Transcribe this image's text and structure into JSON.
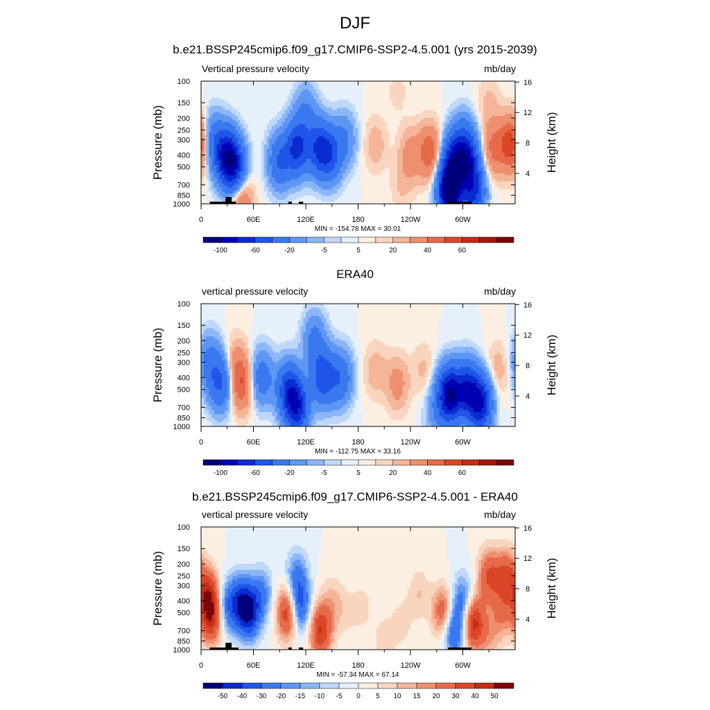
{
  "suptitle": "DJF",
  "colors": {
    "scale_main": [
      "#00007a",
      "#0000b4",
      "#0a2bd0",
      "#1f55e8",
      "#3a78f0",
      "#5e96f4",
      "#8cb6f7",
      "#bfd8fa",
      "#e6f0fb",
      "#fcefe2",
      "#f9d5bf",
      "#f4b598",
      "#ee9070",
      "#e66a4a",
      "#dc4628",
      "#c52c16",
      "#a3170c",
      "#7a0606"
    ],
    "scale_diff": [
      "#00007a",
      "#0a2bd0",
      "#1f55e8",
      "#3a78f0",
      "#5e96f4",
      "#8cb6f7",
      "#bfd8fa",
      "#e6f0fb",
      "#fcefe2",
      "#f9d5bf",
      "#f4b598",
      "#ee9070",
      "#e66a4a",
      "#dc4628",
      "#c52c16",
      "#7a0606"
    ],
    "topography": "#000000"
  },
  "chart_data": [
    {
      "type": "heatmap",
      "title": "b.e21.BSSP245cmip6.f09_g17.CMIP6-SSP2-4.5.001 (yrs 2015-2039)",
      "left_string": "Vertical pressure velocity",
      "right_string": "mb/day",
      "ylabel": "Pressure (mb)",
      "ylabel_right": "Height (km)",
      "x_ticks": [
        "0",
        "60E",
        "120E",
        "180",
        "120W",
        "60W"
      ],
      "x_tick_values": [
        0,
        60,
        120,
        180,
        240,
        300
      ],
      "xlim": [
        0,
        360
      ],
      "y_ticks": [
        "100",
        "150",
        "200",
        "250",
        "300",
        "400",
        "500",
        "700",
        "850",
        "1000"
      ],
      "y_tick_values": [
        100,
        150,
        200,
        250,
        300,
        400,
        500,
        700,
        850,
        1000
      ],
      "ylim": [
        1000,
        100
      ],
      "y_scale": "log",
      "height_ticks": [
        "16",
        "12",
        "8",
        "4"
      ],
      "height_values": [
        16,
        12,
        8,
        4
      ],
      "stats": "MIN = -154.78  MAX =  30.01",
      "colorbar_labels": [
        "-100",
        "-60",
        "-20",
        "-5",
        "5",
        "20",
        "40",
        "60"
      ],
      "colorbar_label_boundaries": [
        1,
        3,
        5,
        7,
        9,
        11,
        13,
        15
      ],
      "colorbar_bins": 18,
      "colorbar_scale": "main",
      "features": [
        {
          "lon": 28,
          "p": 400,
          "value": -70
        },
        {
          "lon": 38,
          "p": 500,
          "value": -70
        },
        {
          "lon": 12,
          "p": 300,
          "value": -30
        },
        {
          "lon": 90,
          "p": 450,
          "value": -40
        },
        {
          "lon": 110,
          "p": 350,
          "value": -65
        },
        {
          "lon": 135,
          "p": 350,
          "value": -55
        },
        {
          "lon": 148,
          "p": 400,
          "value": -45
        },
        {
          "lon": 120,
          "p": 180,
          "value": -20
        },
        {
          "lon": 165,
          "p": 300,
          "value": -20
        },
        {
          "lon": 1,
          "p": 300,
          "value": 12
        },
        {
          "lon": 45,
          "p": 900,
          "value": 25
        },
        {
          "lon": 200,
          "p": 330,
          "value": 8
        },
        {
          "lon": 240,
          "p": 400,
          "value": 14
        },
        {
          "lon": 262,
          "p": 380,
          "value": 28
        },
        {
          "lon": 230,
          "p": 700,
          "value": 5
        },
        {
          "lon": 225,
          "p": 120,
          "value": 3
        },
        {
          "lon": 290,
          "p": 450,
          "value": -70
        },
        {
          "lon": 285,
          "p": 800,
          "value": -120
        },
        {
          "lon": 306,
          "p": 450,
          "value": -65
        },
        {
          "lon": 312,
          "p": 800,
          "value": -60
        },
        {
          "lon": 300,
          "p": 300,
          "value": -25
        },
        {
          "lon": 335,
          "p": 350,
          "value": 22
        },
        {
          "lon": 355,
          "p": 330,
          "value": 32
        },
        {
          "lon": 330,
          "p": 150,
          "value": 6
        }
      ],
      "topography": [
        {
          "lon0": 10,
          "lon1": 40,
          "p_top": 960
        },
        {
          "lon0": 28,
          "lon1": 35,
          "p_top": 880
        },
        {
          "lon0": 100,
          "lon1": 104,
          "p_top": 960
        },
        {
          "lon0": 112,
          "lon1": 117,
          "p_top": 960
        },
        {
          "lon0": 283,
          "lon1": 310,
          "p_top": 960
        }
      ]
    },
    {
      "type": "heatmap",
      "title": "ERA40",
      "left_string": "vertical pressure velocity",
      "right_string": "mb/day",
      "ylabel": "Pressure (mb)",
      "ylabel_right": "Height (km)",
      "x_ticks": [
        "0",
        "60E",
        "120E",
        "180",
        "120W",
        "60W"
      ],
      "x_tick_values": [
        0,
        60,
        120,
        180,
        240,
        300
      ],
      "xlim": [
        0,
        360
      ],
      "y_ticks": [
        "100",
        "150",
        "200",
        "250",
        "300",
        "400",
        "500",
        "700",
        "850",
        "1000"
      ],
      "y_tick_values": [
        100,
        150,
        200,
        250,
        300,
        400,
        500,
        700,
        850,
        1000
      ],
      "ylim": [
        1000,
        100
      ],
      "y_scale": "log",
      "height_ticks": [
        "16",
        "12",
        "8",
        "4"
      ],
      "height_values": [
        16,
        12,
        8,
        4
      ],
      "stats": "MIN = -112.75  MAX =  33.16",
      "colorbar_labels": [
        "-100",
        "-60",
        "-20",
        "-5",
        "5",
        "20",
        "40",
        "60"
      ],
      "colorbar_label_boundaries": [
        1,
        3,
        5,
        7,
        9,
        11,
        13,
        15
      ],
      "colorbar_bins": 18,
      "colorbar_scale": "main",
      "features": [
        {
          "lon": 22,
          "p": 450,
          "value": -40
        },
        {
          "lon": 10,
          "p": 300,
          "value": -25
        },
        {
          "lon": 46,
          "p": 450,
          "value": 28
        },
        {
          "lon": 40,
          "p": 300,
          "value": 10
        },
        {
          "lon": 70,
          "p": 400,
          "value": -30
        },
        {
          "lon": 100,
          "p": 500,
          "value": -55
        },
        {
          "lon": 110,
          "p": 700,
          "value": -70
        },
        {
          "lon": 140,
          "p": 400,
          "value": -55
        },
        {
          "lon": 130,
          "p": 200,
          "value": -25
        },
        {
          "lon": 160,
          "p": 400,
          "value": -35
        },
        {
          "lon": 200,
          "p": 350,
          "value": 8
        },
        {
          "lon": 225,
          "p": 450,
          "value": 14
        },
        {
          "lon": 255,
          "p": 350,
          "value": 6
        },
        {
          "lon": 270,
          "p": 750,
          "value": -15
        },
        {
          "lon": 285,
          "p": 550,
          "value": -100
        },
        {
          "lon": 305,
          "p": 500,
          "value": -70
        },
        {
          "lon": 320,
          "p": 650,
          "value": -80
        },
        {
          "lon": 340,
          "p": 350,
          "value": 8
        }
      ],
      "topography": []
    },
    {
      "type": "heatmap",
      "title": "b.e21.BSSP245cmip6.f09_g17.CMIP6-SSP2-4.5.001 - ERA40",
      "left_string": "vertical pressure velocity",
      "right_string": "mb/day",
      "ylabel": "Pressure (mb)",
      "ylabel_right": "Height (km)",
      "x_ticks": [
        "0",
        "60E",
        "120E",
        "180",
        "120W",
        "60W"
      ],
      "x_tick_values": [
        0,
        60,
        120,
        180,
        240,
        300
      ],
      "xlim": [
        0,
        360
      ],
      "y_ticks": [
        "100",
        "150",
        "200",
        "250",
        "300",
        "400",
        "500",
        "700",
        "850",
        "1000"
      ],
      "y_tick_values": [
        100,
        150,
        200,
        250,
        300,
        400,
        500,
        700,
        850,
        1000
      ],
      "ylim": [
        1000,
        100
      ],
      "y_scale": "log",
      "height_ticks": [
        "16",
        "12",
        "8",
        "4"
      ],
      "height_values": [
        16,
        12,
        8,
        4
      ],
      "stats": "MIN = -57.34  MAX =  67.14",
      "colorbar_labels": [
        "-50",
        "-40",
        "-30",
        "-20",
        "-15",
        "-10",
        "-5",
        "0",
        "5",
        "10",
        "15",
        "20",
        "30",
        "40",
        "50"
      ],
      "colorbar_label_boundaries": [
        1,
        2,
        3,
        4,
        5,
        6,
        7,
        8,
        9,
        10,
        11,
        12,
        13,
        14,
        15
      ],
      "colorbar_bins": 16,
      "colorbar_scale": "diff",
      "features": [
        {
          "lon": 8,
          "p": 350,
          "value": 35
        },
        {
          "lon": 12,
          "p": 550,
          "value": 40
        },
        {
          "lon": 30,
          "p": 450,
          "value": -25
        },
        {
          "lon": 45,
          "p": 400,
          "value": -30
        },
        {
          "lon": 55,
          "p": 500,
          "value": -45
        },
        {
          "lon": 70,
          "p": 350,
          "value": -20
        },
        {
          "lon": 100,
          "p": 500,
          "value": 45
        },
        {
          "lon": 112,
          "p": 450,
          "value": -40
        },
        {
          "lon": 110,
          "p": 250,
          "value": -20
        },
        {
          "lon": 137,
          "p": 700,
          "value": 40
        },
        {
          "lon": 150,
          "p": 400,
          "value": 10
        },
        {
          "lon": 165,
          "p": 500,
          "value": 6
        },
        {
          "lon": 185,
          "p": 450,
          "value": 7
        },
        {
          "lon": 210,
          "p": 850,
          "value": 8
        },
        {
          "lon": 230,
          "p": 600,
          "value": 7
        },
        {
          "lon": 250,
          "p": 350,
          "value": 10
        },
        {
          "lon": 278,
          "p": 500,
          "value": 30
        },
        {
          "lon": 290,
          "p": 700,
          "value": -35
        },
        {
          "lon": 300,
          "p": 400,
          "value": -25
        },
        {
          "lon": 312,
          "p": 600,
          "value": 45
        },
        {
          "lon": 330,
          "p": 250,
          "value": 30
        },
        {
          "lon": 350,
          "p": 250,
          "value": 30
        },
        {
          "lon": 345,
          "p": 500,
          "value": 18
        },
        {
          "lon": 330,
          "p": 800,
          "value": 12
        }
      ],
      "topography": [
        {
          "lon0": 10,
          "lon1": 43,
          "p_top": 960
        },
        {
          "lon0": 28,
          "lon1": 35,
          "p_top": 880
        },
        {
          "lon0": 100,
          "lon1": 104,
          "p_top": 960
        },
        {
          "lon0": 112,
          "lon1": 117,
          "p_top": 960
        },
        {
          "lon0": 283,
          "lon1": 310,
          "p_top": 960
        }
      ]
    }
  ]
}
